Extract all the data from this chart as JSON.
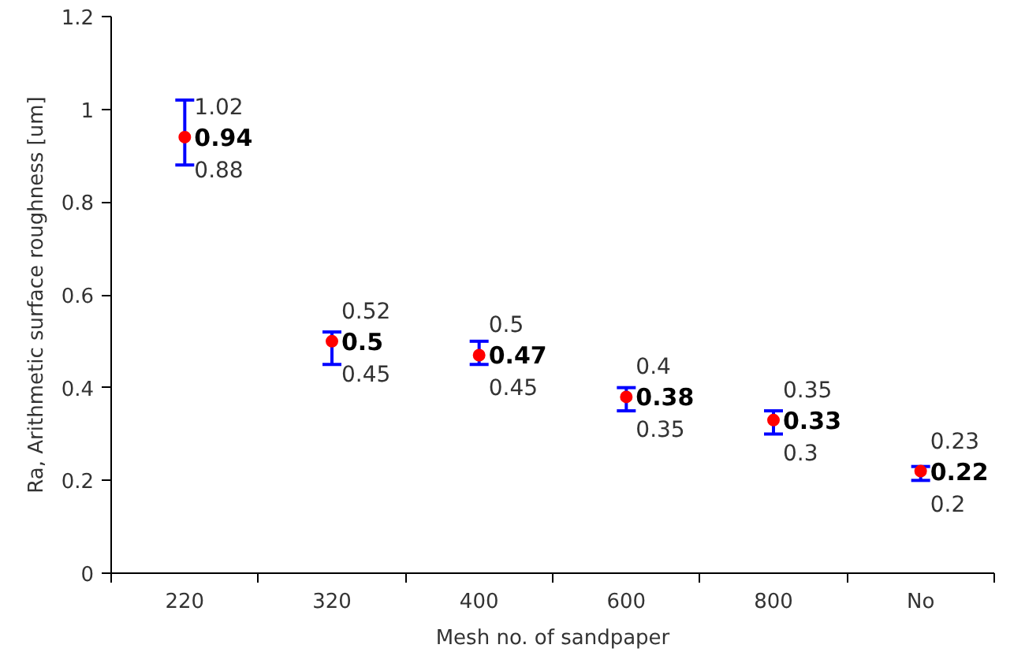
{
  "chart_data": {
    "type": "scatter",
    "xlabel": "Mesh no. of sandpaper",
    "ylabel": "Ra, Arithmetic surface roughness [um]",
    "categories": [
      "220",
      "320",
      "400",
      "600",
      "800",
      "No"
    ],
    "values": [
      0.94,
      0.5,
      0.47,
      0.38,
      0.33,
      0.22
    ],
    "errors": [
      [
        0.88,
        1.02
      ],
      [
        0.45,
        0.52
      ],
      [
        0.45,
        0.5
      ],
      [
        0.35,
        0.4
      ],
      [
        0.3,
        0.35
      ],
      [
        0.2,
        0.23
      ]
    ],
    "annotations": [
      {
        "text": "1.02",
        "x": "220",
        "y": 1.02
      },
      {
        "text": "0.88",
        "x": "220",
        "y": 0.88
      },
      {
        "text": "0.52",
        "x": "320",
        "y": 0.52
      },
      {
        "text": "0.45",
        "x": "320",
        "y": 0.45
      },
      {
        "text": "0.5",
        "x": "400",
        "y": 0.5
      },
      {
        "text": "0.45",
        "x": "400",
        "y": 0.45
      },
      {
        "text": "0.4",
        "x": "600",
        "y": 0.4
      },
      {
        "text": "0.35",
        "x": "600",
        "y": 0.35
      },
      {
        "text": "0.35",
        "x": "800",
        "y": 0.35
      },
      {
        "text": "0.3",
        "x": "800",
        "y": 0.3
      },
      {
        "text": "0.23",
        "x": "No",
        "y": 0.23
      },
      {
        "text": "0.2",
        "x": "No",
        "y": 0.2
      }
    ],
    "color": "#ff0000",
    "marker": "circle",
    "data_labels": true,
    "ylim": [
      0,
      1.2
    ],
    "yticks": [
      0,
      0.2,
      0.4,
      0.6,
      0.8,
      1,
      1.2
    ],
    "grid": false
  }
}
